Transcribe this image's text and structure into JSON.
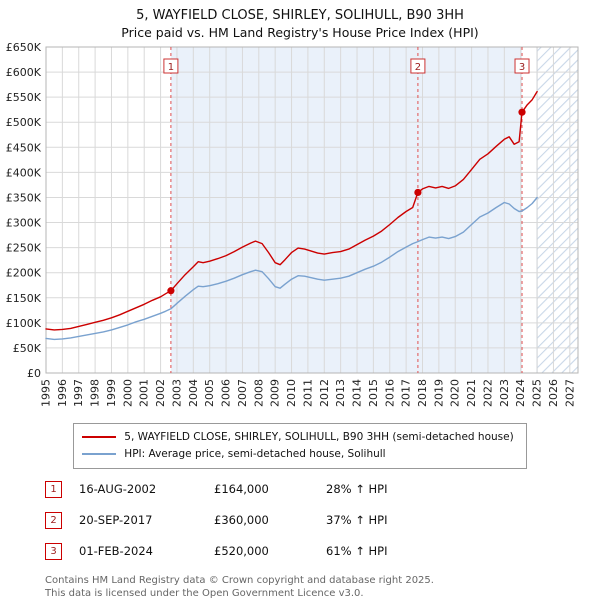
{
  "title": "5, WAYFIELD CLOSE, SHIRLEY, SOLIHULL, B90 3HH",
  "subtitle": "Price paid vs. HM Land Registry's House Price Index (HPI)",
  "colors": {
    "accent": "#cc0000",
    "hpi_blue": "#7aa2cf",
    "grid": "#d9d9d9",
    "plot_border": "#b5b5b5",
    "shade": "#eaf1fa",
    "hatch_line": "#c9d7e8",
    "hatch_edge": "#9db3d0",
    "dashed_marker": "#e05050",
    "axis_text": "#222222"
  },
  "chart_data": {
    "type": "line",
    "title": "5, WAYFIELD CLOSE, SHIRLEY, SOLIHULL, B90 3HH — Price paid vs. HPI",
    "x_range": [
      1995,
      2027.5
    ],
    "y_range": [
      0,
      650000
    ],
    "x_ticks": [
      1995,
      1996,
      1997,
      1998,
      1999,
      2000,
      2001,
      2002,
      2003,
      2004,
      2005,
      2006,
      2007,
      2008,
      2009,
      2010,
      2011,
      2012,
      2013,
      2014,
      2015,
      2016,
      2017,
      2018,
      2019,
      2020,
      2021,
      2022,
      2023,
      2024,
      2025,
      2026,
      2027
    ],
    "y_tick_labels": [
      "£0",
      "£50K",
      "£100K",
      "£150K",
      "£200K",
      "£250K",
      "£300K",
      "£350K",
      "£400K",
      "£450K",
      "£500K",
      "£550K",
      "£600K",
      "£650K"
    ],
    "grid": true,
    "legend_position": "bottom",
    "shaded_region": {
      "from": 2002.63,
      "to": 2024.08
    },
    "hatched_region": {
      "from": 2025.0,
      "to": 2027.5
    },
    "series": [
      {
        "name": "5, WAYFIELD CLOSE, SHIRLEY, SOLIHULL, B90 3HH (semi-detached house)",
        "color": "#cc0000",
        "points": [
          [
            1995.0,
            88000
          ],
          [
            1995.5,
            86000
          ],
          [
            1996.0,
            87000
          ],
          [
            1996.5,
            89000
          ],
          [
            1997.0,
            93000
          ],
          [
            1997.5,
            97000
          ],
          [
            1998.0,
            101000
          ],
          [
            1998.5,
            105000
          ],
          [
            1999.0,
            110000
          ],
          [
            1999.5,
            116000
          ],
          [
            2000.0,
            123000
          ],
          [
            2000.5,
            130000
          ],
          [
            2001.0,
            137000
          ],
          [
            2001.5,
            145000
          ],
          [
            2002.0,
            152000
          ],
          [
            2002.3,
            158000
          ],
          [
            2002.63,
            164000
          ],
          [
            2003.0,
            178000
          ],
          [
            2003.5,
            196000
          ],
          [
            2004.0,
            212000
          ],
          [
            2004.3,
            222000
          ],
          [
            2004.6,
            220000
          ],
          [
            2005.0,
            223000
          ],
          [
            2005.5,
            228000
          ],
          [
            2006.0,
            234000
          ],
          [
            2006.5,
            242000
          ],
          [
            2007.0,
            251000
          ],
          [
            2007.5,
            259000
          ],
          [
            2007.8,
            263000
          ],
          [
            2008.2,
            258000
          ],
          [
            2008.6,
            240000
          ],
          [
            2009.0,
            220000
          ],
          [
            2009.3,
            216000
          ],
          [
            2009.6,
            226000
          ],
          [
            2010.0,
            240000
          ],
          [
            2010.4,
            249000
          ],
          [
            2010.8,
            247000
          ],
          [
            2011.2,
            243000
          ],
          [
            2011.6,
            239000
          ],
          [
            2012.0,
            237000
          ],
          [
            2012.5,
            240000
          ],
          [
            2013.0,
            242000
          ],
          [
            2013.5,
            247000
          ],
          [
            2014.0,
            256000
          ],
          [
            2014.5,
            265000
          ],
          [
            2015.0,
            273000
          ],
          [
            2015.5,
            283000
          ],
          [
            2016.0,
            296000
          ],
          [
            2016.5,
            310000
          ],
          [
            2017.0,
            322000
          ],
          [
            2017.4,
            330000
          ],
          [
            2017.72,
            360000
          ],
          [
            2018.0,
            367000
          ],
          [
            2018.4,
            372000
          ],
          [
            2018.8,
            369000
          ],
          [
            2019.2,
            372000
          ],
          [
            2019.6,
            368000
          ],
          [
            2020.0,
            373000
          ],
          [
            2020.5,
            386000
          ],
          [
            2021.0,
            406000
          ],
          [
            2021.5,
            426000
          ],
          [
            2022.0,
            437000
          ],
          [
            2022.5,
            452000
          ],
          [
            2023.0,
            466000
          ],
          [
            2023.3,
            471000
          ],
          [
            2023.6,
            456000
          ],
          [
            2023.9,
            461000
          ],
          [
            2024.08,
            520000
          ],
          [
            2024.4,
            535000
          ],
          [
            2024.7,
            545000
          ],
          [
            2025.0,
            561000
          ]
        ]
      },
      {
        "name": "HPI: Average price, semi-detached house, Solihull",
        "color": "#7aa2cf",
        "points": [
          [
            1995.0,
            69000
          ],
          [
            1995.5,
            67000
          ],
          [
            1996.0,
            68000
          ],
          [
            1996.5,
            70000
          ],
          [
            1997.0,
            73000
          ],
          [
            1997.5,
            76000
          ],
          [
            1998.0,
            79000
          ],
          [
            1998.5,
            82000
          ],
          [
            1999.0,
            86000
          ],
          [
            1999.5,
            91000
          ],
          [
            2000.0,
            96000
          ],
          [
            2000.5,
            102000
          ],
          [
            2001.0,
            107000
          ],
          [
            2001.5,
            113000
          ],
          [
            2002.0,
            119000
          ],
          [
            2002.3,
            123000
          ],
          [
            2002.63,
            128000
          ],
          [
            2003.0,
            139000
          ],
          [
            2003.5,
            153000
          ],
          [
            2004.0,
            166000
          ],
          [
            2004.3,
            173000
          ],
          [
            2004.6,
            172000
          ],
          [
            2005.0,
            174000
          ],
          [
            2005.5,
            178000
          ],
          [
            2006.0,
            183000
          ],
          [
            2006.5,
            189000
          ],
          [
            2007.0,
            196000
          ],
          [
            2007.5,
            202000
          ],
          [
            2007.8,
            205000
          ],
          [
            2008.2,
            202000
          ],
          [
            2008.6,
            188000
          ],
          [
            2009.0,
            172000
          ],
          [
            2009.3,
            169000
          ],
          [
            2009.6,
            177000
          ],
          [
            2010.0,
            187000
          ],
          [
            2010.4,
            194000
          ],
          [
            2010.8,
            193000
          ],
          [
            2011.2,
            190000
          ],
          [
            2011.6,
            187000
          ],
          [
            2012.0,
            185000
          ],
          [
            2012.5,
            187000
          ],
          [
            2013.0,
            189000
          ],
          [
            2013.5,
            193000
          ],
          [
            2014.0,
            200000
          ],
          [
            2014.5,
            207000
          ],
          [
            2015.0,
            213000
          ],
          [
            2015.5,
            221000
          ],
          [
            2016.0,
            231000
          ],
          [
            2016.5,
            242000
          ],
          [
            2017.0,
            251000
          ],
          [
            2017.4,
            258000
          ],
          [
            2017.72,
            262000
          ],
          [
            2018.0,
            266000
          ],
          [
            2018.4,
            271000
          ],
          [
            2018.8,
            269000
          ],
          [
            2019.2,
            271000
          ],
          [
            2019.6,
            268000
          ],
          [
            2020.0,
            272000
          ],
          [
            2020.5,
            281000
          ],
          [
            2021.0,
            296000
          ],
          [
            2021.5,
            311000
          ],
          [
            2022.0,
            319000
          ],
          [
            2022.5,
            330000
          ],
          [
            2023.0,
            340000
          ],
          [
            2023.3,
            337000
          ],
          [
            2023.6,
            328000
          ],
          [
            2023.9,
            322000
          ],
          [
            2024.08,
            323000
          ],
          [
            2024.4,
            330000
          ],
          [
            2024.7,
            338000
          ],
          [
            2025.0,
            350000
          ]
        ]
      }
    ],
    "sales": [
      {
        "n": "1",
        "x": 2002.63,
        "y": 164000
      },
      {
        "n": "2",
        "x": 2017.72,
        "y": 360000
      },
      {
        "n": "3",
        "x": 2024.08,
        "y": 520000
      }
    ]
  },
  "legend": {
    "items": [
      "5, WAYFIELD CLOSE, SHIRLEY, SOLIHULL, B90 3HH (semi-detached house)",
      "HPI: Average price, semi-detached house, Solihull"
    ]
  },
  "transactions": [
    {
      "n": "1",
      "date": "16-AUG-2002",
      "price": "£164,000",
      "hpi": "28% ↑ HPI"
    },
    {
      "n": "2",
      "date": "20-SEP-2017",
      "price": "£360,000",
      "hpi": "37% ↑ HPI"
    },
    {
      "n": "3",
      "date": "01-FEB-2024",
      "price": "£520,000",
      "hpi": "61% ↑ HPI"
    }
  ],
  "footer": {
    "line1": "Contains HM Land Registry data © Crown copyright and database right 2025.",
    "line2": "This data is licensed under the Open Government Licence v3.0."
  }
}
